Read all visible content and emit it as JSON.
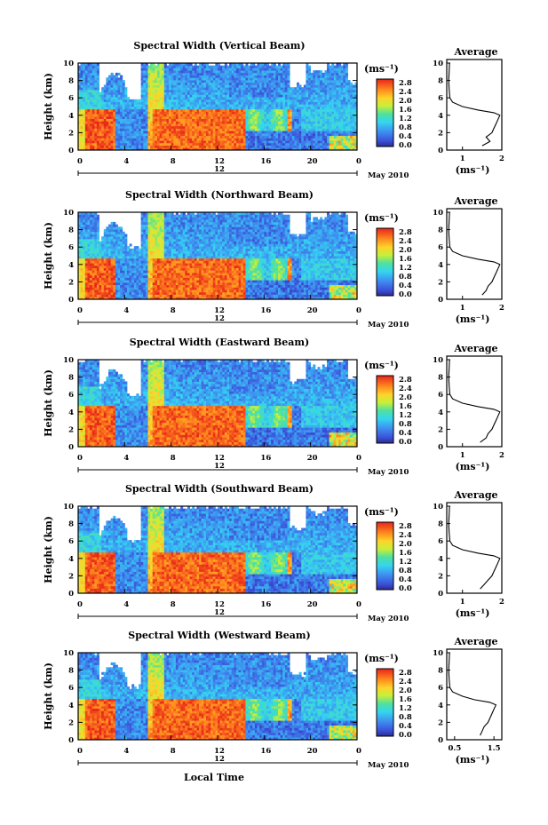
{
  "chart_data": {
    "type": "heatmap",
    "xlabel": "Local Time",
    "date_label": "May 2010",
    "day_label": "12",
    "x_ticks": [
      "0",
      "4",
      "8",
      "12",
      "16",
      "20",
      "0"
    ],
    "xlim": [
      0,
      24
    ],
    "ylabel": "Height (km)",
    "y_ticks": [
      "0",
      "2",
      "4",
      "6",
      "8",
      "10"
    ],
    "ylim": [
      0,
      10
    ],
    "colorbar": {
      "unit": "(ms⁻¹)",
      "range": [
        0.0,
        2.8
      ],
      "labels": [
        "2.8",
        "2.4",
        "2.0",
        "1.6",
        "1.2",
        "0.8",
        "0.4",
        "0.0"
      ]
    },
    "average": {
      "title": "Average",
      "xlabel": "(ms⁻¹)",
      "y_ticks": [
        "0",
        "2",
        "4",
        "6",
        "8",
        "10"
      ],
      "ylim": [
        0,
        10
      ]
    },
    "panels": [
      {
        "title": "Spectral Width (Vertical Beam)",
        "avg_x_ticks": [
          "1",
          "2"
        ],
        "avg_xlim": [
          0.6,
          2.0
        ],
        "avg_profile": [
          [
            0.5,
            1.5
          ],
          [
            1.0,
            1.7
          ],
          [
            1.5,
            1.6
          ],
          [
            2.0,
            1.75
          ],
          [
            2.5,
            1.8
          ],
          [
            3.0,
            1.85
          ],
          [
            3.5,
            1.9
          ],
          [
            4.0,
            1.95
          ],
          [
            4.3,
            1.8
          ],
          [
            4.6,
            1.4
          ],
          [
            5.0,
            1.0
          ],
          [
            5.5,
            0.75
          ],
          [
            6.0,
            0.68
          ],
          [
            7.0,
            0.66
          ],
          [
            8.0,
            0.65
          ],
          [
            9.0,
            0.66
          ],
          [
            10.0,
            0.67
          ]
        ]
      },
      {
        "title": "Spectral Width (Northward Beam)",
        "avg_x_ticks": [
          "1",
          "2"
        ],
        "avg_xlim": [
          0.6,
          2.0
        ],
        "avg_profile": [
          [
            0.5,
            1.5
          ],
          [
            1.0,
            1.6
          ],
          [
            1.5,
            1.65
          ],
          [
            2.0,
            1.75
          ],
          [
            2.5,
            1.8
          ],
          [
            3.0,
            1.85
          ],
          [
            3.5,
            1.9
          ],
          [
            4.0,
            1.95
          ],
          [
            4.3,
            1.8
          ],
          [
            4.6,
            1.4
          ],
          [
            5.0,
            1.0
          ],
          [
            5.5,
            0.75
          ],
          [
            6.0,
            0.68
          ],
          [
            7.0,
            0.66
          ],
          [
            8.0,
            0.65
          ],
          [
            9.0,
            0.66
          ],
          [
            10.0,
            0.67
          ]
        ]
      },
      {
        "title": "Spectral Width (Eastward Beam)",
        "avg_x_ticks": [
          "1",
          "2"
        ],
        "avg_xlim": [
          0.6,
          2.0
        ],
        "avg_profile": [
          [
            0.5,
            1.45
          ],
          [
            1.0,
            1.6
          ],
          [
            1.5,
            1.65
          ],
          [
            2.0,
            1.75
          ],
          [
            2.5,
            1.8
          ],
          [
            3.0,
            1.85
          ],
          [
            3.5,
            1.9
          ],
          [
            4.0,
            1.95
          ],
          [
            4.3,
            1.8
          ],
          [
            4.6,
            1.4
          ],
          [
            5.0,
            1.0
          ],
          [
            5.5,
            0.75
          ],
          [
            6.0,
            0.68
          ],
          [
            7.0,
            0.66
          ],
          [
            8.0,
            0.65
          ],
          [
            9.0,
            0.66
          ],
          [
            10.0,
            0.67
          ]
        ]
      },
      {
        "title": "Spectral Width (Southward Beam)",
        "avg_x_ticks": [
          "1",
          "2"
        ],
        "avg_xlim": [
          0.6,
          2.0
        ],
        "avg_profile": [
          [
            0.5,
            1.45
          ],
          [
            1.0,
            1.55
          ],
          [
            1.5,
            1.65
          ],
          [
            2.0,
            1.75
          ],
          [
            2.5,
            1.8
          ],
          [
            3.0,
            1.85
          ],
          [
            3.5,
            1.9
          ],
          [
            4.0,
            1.95
          ],
          [
            4.3,
            1.8
          ],
          [
            4.6,
            1.4
          ],
          [
            5.0,
            1.0
          ],
          [
            5.5,
            0.75
          ],
          [
            6.0,
            0.68
          ],
          [
            7.0,
            0.66
          ],
          [
            8.0,
            0.65
          ],
          [
            9.0,
            0.66
          ],
          [
            10.0,
            0.67
          ]
        ]
      },
      {
        "title": "Spectral Width (Westward Beam)",
        "avg_x_ticks": [
          "0.5",
          "1.5"
        ],
        "avg_xlim": [
          0.3,
          1.7
        ],
        "avg_profile": [
          [
            0.5,
            1.15
          ],
          [
            1.0,
            1.2
          ],
          [
            1.5,
            1.25
          ],
          [
            2.0,
            1.35
          ],
          [
            2.5,
            1.4
          ],
          [
            3.0,
            1.45
          ],
          [
            3.5,
            1.5
          ],
          [
            4.0,
            1.55
          ],
          [
            4.3,
            1.4
          ],
          [
            4.6,
            1.0
          ],
          [
            5.0,
            0.7
          ],
          [
            5.5,
            0.45
          ],
          [
            6.0,
            0.38
          ],
          [
            7.0,
            0.36
          ],
          [
            8.0,
            0.35
          ],
          [
            9.0,
            0.36
          ],
          [
            10.0,
            0.37
          ]
        ]
      }
    ]
  }
}
